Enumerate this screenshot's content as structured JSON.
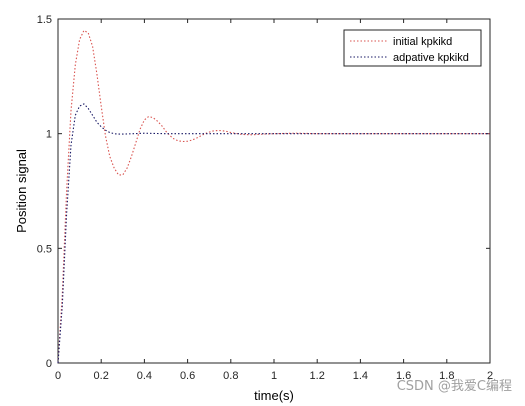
{
  "chart_data": {
    "type": "line",
    "title": "",
    "xlabel": "time(s)",
    "ylabel": "Position signal",
    "xlim": [
      0,
      2
    ],
    "ylim": [
      0,
      1.5
    ],
    "x_ticks": [
      0,
      0.2,
      0.4,
      0.6,
      0.8,
      1,
      1.2,
      1.4,
      1.6,
      1.8,
      2
    ],
    "x_tick_labels": [
      "0",
      "0.2",
      "0.4",
      "0.6",
      "0.8",
      "1",
      "1.2",
      "1.4",
      "1.6",
      "1.8",
      "2"
    ],
    "y_ticks": [
      0,
      0.5,
      1,
      1.5
    ],
    "y_tick_labels": [
      "0",
      "0.5",
      "1",
      "1.5"
    ],
    "grid": false,
    "legend_position": "top-right",
    "series": [
      {
        "name": "initial kpkikd",
        "color": "#d9534f",
        "style": "dotted",
        "x": [
          0,
          0.02,
          0.04,
          0.06,
          0.08,
          0.1,
          0.12,
          0.14,
          0.16,
          0.18,
          0.2,
          0.22,
          0.24,
          0.26,
          0.28,
          0.3,
          0.32,
          0.34,
          0.36,
          0.38,
          0.4,
          0.42,
          0.44,
          0.46,
          0.48,
          0.5,
          0.52,
          0.54,
          0.56,
          0.58,
          0.6,
          0.62,
          0.64,
          0.66,
          0.68,
          0.7,
          0.72,
          0.74,
          0.76,
          0.78,
          0.8,
          0.85,
          0.9,
          0.95,
          1.0,
          1.1,
          1.2,
          1.4,
          1.6,
          1.8,
          2.0
        ],
        "values": [
          0,
          0.3,
          0.75,
          1.1,
          1.3,
          1.41,
          1.45,
          1.44,
          1.38,
          1.26,
          1.12,
          0.99,
          0.9,
          0.85,
          0.82,
          0.82,
          0.85,
          0.9,
          0.96,
          1.02,
          1.06,
          1.075,
          1.07,
          1.055,
          1.035,
          1.01,
          0.99,
          0.975,
          0.968,
          0.966,
          0.967,
          0.972,
          0.98,
          0.99,
          1.0,
          1.007,
          1.012,
          1.014,
          1.013,
          1.01,
          1.005,
          0.997,
          0.995,
          0.998,
          1.0,
          1.002,
          1.0,
          1.0,
          1.0,
          1.0,
          1.0
        ]
      },
      {
        "name": "adpative kpkikd",
        "color": "#1a1a66",
        "style": "dotted",
        "x": [
          0,
          0.02,
          0.04,
          0.06,
          0.08,
          0.1,
          0.12,
          0.14,
          0.16,
          0.18,
          0.2,
          0.22,
          0.24,
          0.26,
          0.28,
          0.3,
          0.35,
          0.4,
          0.5,
          0.6,
          0.7,
          0.8,
          1.0,
          1.2,
          1.4,
          1.6,
          1.8,
          2.0
        ],
        "values": [
          0,
          0.25,
          0.65,
          0.95,
          1.08,
          1.12,
          1.13,
          1.11,
          1.08,
          1.05,
          1.03,
          1.015,
          1.005,
          1.0,
          0.998,
          0.998,
          1.0,
          1.002,
          1.0,
          1.0,
          1.0,
          1.0,
          1.0,
          1.0,
          1.0,
          1.0,
          1.0,
          1.0
        ]
      }
    ]
  },
  "watermark": "CSDN @我爱C编程"
}
